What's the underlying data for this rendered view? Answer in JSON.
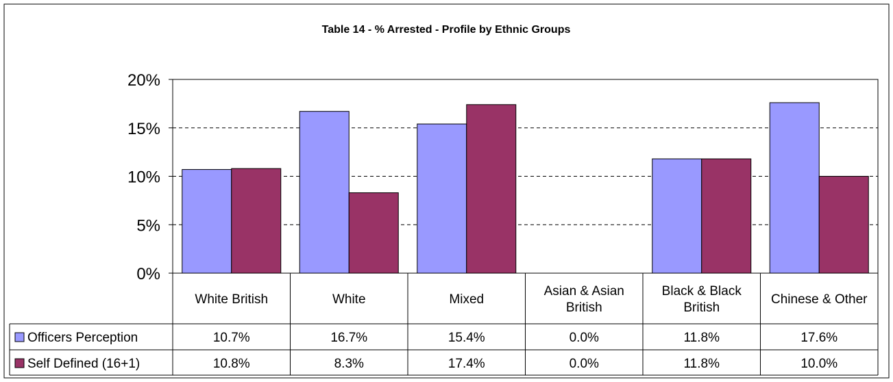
{
  "chart_data": {
    "type": "bar",
    "title": "Table 14 - % Arrested - Profile by Ethnic Groups",
    "categories": [
      [
        "White British"
      ],
      [
        "White"
      ],
      [
        "Mixed"
      ],
      [
        "Asian & Asian",
        "British"
      ],
      [
        "Black & Black",
        "British"
      ],
      [
        "Chinese & Other"
      ]
    ],
    "series": [
      {
        "name": "Officers Perception",
        "color": "#9999FF",
        "values": [
          10.7,
          16.7,
          15.4,
          0.0,
          11.8,
          17.6
        ],
        "labels": [
          "10.7%",
          "16.7%",
          "15.4%",
          "0.0%",
          "11.8%",
          "17.6%"
        ]
      },
      {
        "name": "Self Defined (16+1)",
        "color": "#993366",
        "values": [
          10.8,
          8.3,
          17.4,
          0.0,
          11.8,
          10.0
        ],
        "labels": [
          "10.8%",
          "8.3%",
          "17.4%",
          "0.0%",
          "11.8%",
          "10.0%"
        ]
      }
    ],
    "y_ticks": [
      "0%",
      "5%",
      "10%",
      "15%",
      "20%"
    ],
    "ylim": [
      0,
      20
    ],
    "y_unit": "%",
    "grid": "dashed horizontal",
    "plot_background": "#FFFFFF",
    "legend": "data table"
  }
}
